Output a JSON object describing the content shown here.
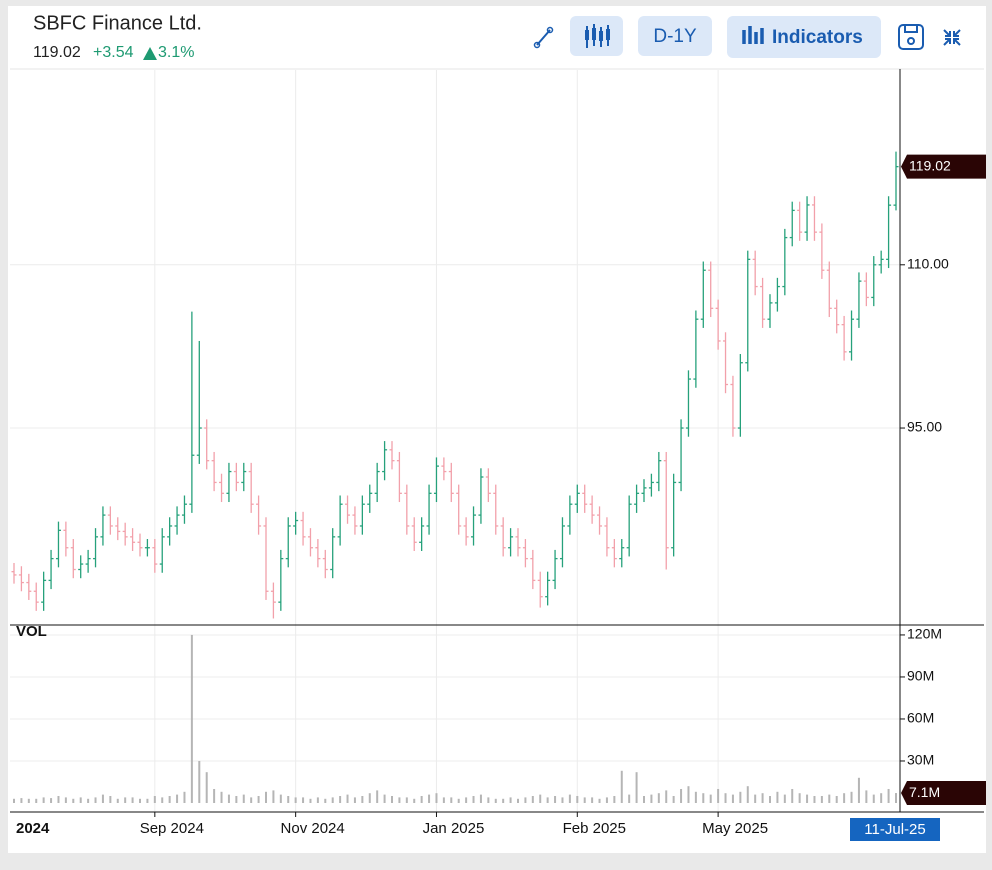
{
  "header": {
    "title": "SBFC Finance Ltd.",
    "change": "+3.54",
    "change_pct": "3.1%",
    "range_button": "D-1Y",
    "indicators_button": "Indicators"
  },
  "chart_data": {
    "type": "ohlc",
    "volume_label": "VOL",
    "last_date": "11-Jul-25",
    "up_color": "#26a17b",
    "down_color": "#f2a0aa",
    "grid": true,
    "ylim": [
      76.9,
      127.9
    ],
    "yticks": [
      {
        "value": 95,
        "label": "95.00"
      },
      {
        "value": 110,
        "label": "110.00"
      }
    ],
    "xticks": [
      {
        "value": 0,
        "label": "2024"
      },
      {
        "value": 19,
        "label": "Sep 2024"
      },
      {
        "value": 38,
        "label": "Nov 2024"
      },
      {
        "value": 57,
        "label": "Jan 2025"
      },
      {
        "value": 76,
        "label": "Feb 2025"
      },
      {
        "value": 95,
        "label": "May 2025"
      }
    ],
    "open": [
      81.8,
      81.5,
      80.8,
      80,
      79,
      81,
      83,
      85.6,
      84,
      82,
      82.5,
      83,
      85,
      87,
      86,
      85.5,
      85,
      84.5,
      84,
      84,
      82.5,
      85,
      86,
      87,
      88,
      92.5,
      95,
      92,
      90,
      89,
      91,
      90,
      91,
      88,
      86,
      80,
      79,
      83,
      86,
      86.5,
      85,
      84,
      83,
      82,
      85,
      88,
      87,
      86,
      88,
      89,
      91,
      93,
      92,
      89,
      86,
      84.5,
      86,
      89,
      91.5,
      91,
      89,
      86,
      85,
      87,
      90.5,
      89,
      86,
      84,
      85,
      84,
      83,
      81,
      79.5,
      81,
      83,
      86,
      88,
      89,
      88,
      87,
      86,
      84,
      83,
      84,
      88,
      89,
      89.5,
      90,
      92,
      84,
      90,
      95,
      99.5,
      105,
      109.5,
      106,
      103,
      99,
      95,
      101,
      110.5,
      108,
      105,
      106.5,
      108,
      112.5,
      115,
      113,
      115.5,
      113,
      109.5,
      106,
      104.5,
      102,
      105,
      108.5,
      107,
      110,
      110.5,
      115.48
    ],
    "high": [
      82.6,
      82.3,
      81.6,
      80.8,
      81.8,
      83.8,
      86.4,
      86.4,
      84.8,
      83.3,
      83.8,
      85.8,
      87.8,
      87.8,
      86.8,
      86.3,
      85.8,
      85.3,
      84.8,
      84.8,
      85.8,
      86.8,
      87.8,
      88.8,
      105.7,
      103,
      95.8,
      92.8,
      90.8,
      91.8,
      91.8,
      91.8,
      91.8,
      88.8,
      86.8,
      80.8,
      83.8,
      86.8,
      87.3,
      87.3,
      85.8,
      84.8,
      83.8,
      85.8,
      88.8,
      88.8,
      87.8,
      88.8,
      89.8,
      91.8,
      93.8,
      93.8,
      92.8,
      89.8,
      86.8,
      86.8,
      89.8,
      92.3,
      92.3,
      91.8,
      89.8,
      86.8,
      87.8,
      91.3,
      91.3,
      89.8,
      86.8,
      85.8,
      85.8,
      84.8,
      83.8,
      81.8,
      81.8,
      83.8,
      86.8,
      88.8,
      89.8,
      89.8,
      88.8,
      87.8,
      86.8,
      84.8,
      84.8,
      88.8,
      89.8,
      90.3,
      90.8,
      92.8,
      92.8,
      90.8,
      95.8,
      100.3,
      105.8,
      110.3,
      110.3,
      106.8,
      103.8,
      99.8,
      101.8,
      111.3,
      111.3,
      108.8,
      107.3,
      108.8,
      113.3,
      115.8,
      115.8,
      116.3,
      116.3,
      113.8,
      110.3,
      106.8,
      105.3,
      105.8,
      109.3,
      109.3,
      110.8,
      111.3,
      116.3,
      120.4
    ],
    "low": [
      80.7,
      80,
      79.2,
      78.2,
      78.2,
      80.2,
      82.2,
      83.2,
      81.2,
      81.2,
      81.7,
      82.2,
      84.2,
      85.2,
      84.7,
      84.2,
      83.7,
      83.2,
      83.2,
      81.7,
      81.7,
      84.2,
      85.2,
      86.2,
      87.2,
      91.7,
      91.2,
      89.2,
      88.2,
      88.2,
      89.2,
      89.2,
      87.2,
      85.2,
      79.2,
      77.5,
      78.2,
      82.2,
      85.2,
      84.2,
      83.2,
      82.2,
      81.2,
      81.2,
      84.2,
      86.2,
      85.2,
      85.2,
      87.2,
      88.2,
      90.2,
      91.2,
      88.2,
      85.2,
      83.7,
      83.7,
      85.2,
      88.2,
      90.2,
      88.2,
      85.2,
      84.2,
      84.2,
      86.2,
      88.2,
      85.2,
      83.2,
      83.2,
      83.2,
      82.2,
      80.2,
      78.5,
      78.7,
      80.2,
      82.2,
      85.2,
      87.2,
      87.2,
      86.2,
      85.2,
      83.2,
      82.2,
      82.2,
      83.2,
      87.2,
      88.2,
      88.7,
      89.2,
      82,
      83.2,
      89.2,
      94.2,
      98.7,
      104.2,
      105.2,
      102.2,
      98.2,
      94.2,
      94.2,
      100.2,
      107.2,
      104.2,
      104.2,
      105.7,
      107.2,
      111.7,
      112.2,
      112.2,
      112.2,
      108.7,
      105.2,
      103.7,
      101.2,
      101.2,
      104.2,
      106.2,
      106.2,
      109.2,
      109.7,
      115
    ],
    "close": [
      81.5,
      80.8,
      80,
      79,
      81,
      83,
      85.6,
      84,
      82,
      82.5,
      83,
      85,
      87,
      86,
      85.5,
      85,
      84.5,
      84,
      84,
      82.5,
      85,
      86,
      87,
      88,
      92.5,
      95,
      92,
      90,
      89,
      91,
      90,
      91,
      88,
      86,
      80,
      79,
      83,
      86,
      86.5,
      85,
      84,
      83,
      82,
      85,
      88,
      87,
      86,
      88,
      89,
      91,
      93,
      92,
      89,
      86,
      84.5,
      86,
      89,
      91.5,
      91,
      89,
      86,
      85,
      87,
      90.5,
      89,
      86,
      84,
      85,
      84,
      83,
      81,
      79.5,
      81,
      83,
      86,
      88,
      89,
      88,
      87,
      86,
      84,
      83,
      84,
      88,
      89,
      89.5,
      90,
      92,
      84,
      90,
      95,
      99.5,
      105,
      109.5,
      106,
      103,
      99,
      95,
      101,
      110.5,
      108,
      105,
      106.5,
      108,
      112.5,
      115,
      113,
      115.5,
      113,
      109.5,
      106,
      104.5,
      102,
      105,
      108.5,
      107,
      110,
      110.5,
      115.48,
      119.02
    ],
    "volume": {
      "color": "#b5b5b5",
      "ylim": [
        -5,
        127.1
      ],
      "yticks": [
        {
          "value": 30,
          "label": "30M"
        },
        {
          "value": 60,
          "label": "60M"
        },
        {
          "value": 90,
          "label": "90M"
        },
        {
          "value": 120,
          "label": "120M"
        }
      ],
      "last_label": "7.1M",
      "values": [
        3,
        3.5,
        3,
        3,
        4,
        3.5,
        5,
        4,
        3,
        4,
        3,
        4,
        6,
        5,
        3,
        4,
        4,
        3,
        3,
        5,
        4,
        5,
        6,
        8,
        120,
        30,
        22,
        10,
        8,
        6,
        5,
        6,
        4,
        5,
        8,
        9,
        6,
        5,
        4,
        4,
        3,
        4,
        3,
        4,
        5,
        6,
        4,
        5,
        7,
        9,
        6,
        5,
        4,
        4,
        3,
        5,
        6,
        7,
        4,
        4,
        3,
        4,
        5,
        6,
        4,
        3,
        3,
        4,
        3,
        4,
        5,
        6,
        4,
        5,
        4,
        6,
        5,
        4,
        4,
        3,
        4,
        5,
        23,
        6,
        22,
        5,
        6,
        7,
        9,
        5,
        10,
        12,
        8,
        7,
        6,
        10,
        7,
        6,
        8,
        12,
        6,
        7,
        5,
        8,
        6,
        10,
        7,
        6,
        5,
        5,
        6,
        5,
        7,
        8,
        18,
        9,
        6,
        7,
        10,
        7.1
      ]
    }
  }
}
